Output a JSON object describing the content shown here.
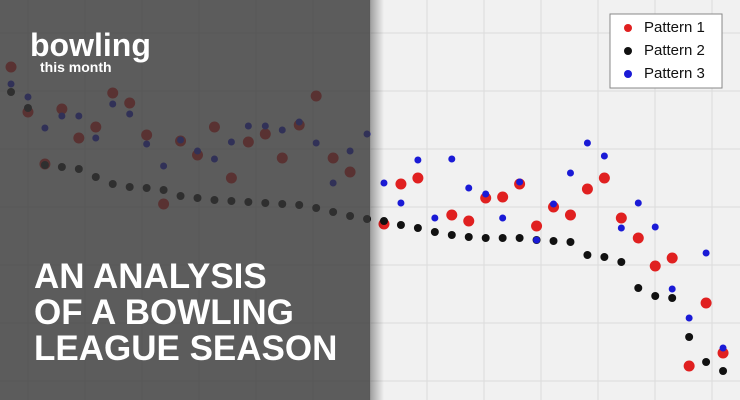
{
  "chart_data": {
    "type": "scatter",
    "x": [
      1,
      2,
      3,
      4,
      5,
      6,
      7,
      8,
      9,
      10,
      11,
      12,
      13,
      14,
      15,
      16,
      17,
      18,
      19,
      20,
      21,
      22,
      23,
      24,
      25,
      26,
      27,
      28,
      29,
      30,
      31,
      32,
      33,
      34,
      35,
      36,
      37,
      38,
      39,
      40,
      41,
      42,
      43
    ],
    "xlim": [
      0.35,
      44
    ],
    "ylim": [
      0,
      400
    ],
    "grid": true,
    "legend": "top-right",
    "series": [
      {
        "name": "Pattern 1",
        "color": "#e02020",
        "values": [
          333,
          288,
          236,
          291,
          262,
          273,
          307,
          297,
          265,
          196,
          259,
          245,
          273,
          222,
          258,
          266,
          242,
          275,
          304,
          242,
          228,
          null,
          176,
          216,
          222,
          null,
          185,
          179,
          202,
          203,
          216,
          174,
          193,
          185,
          211,
          222,
          182,
          162,
          134,
          142,
          34,
          97,
          47
        ]
      },
      {
        "name": "Pattern 2",
        "color": "#111111",
        "values": [
          308,
          292,
          235,
          233,
          231,
          223,
          216,
          213,
          212,
          210,
          204,
          202,
          200,
          199,
          198,
          197,
          196,
          195,
          192,
          188,
          184,
          181,
          179,
          175,
          172,
          168,
          165,
          163,
          162,
          162,
          162,
          160,
          159,
          158,
          145,
          143,
          138,
          112,
          104,
          102,
          63,
          38,
          29
        ]
      },
      {
        "name": "Pattern 3",
        "color": "#1a1ad6",
        "values": [
          316,
          303,
          272,
          284,
          284,
          262,
          296,
          286,
          256,
          234,
          260,
          249,
          241,
          258,
          274,
          274,
          270,
          278,
          257,
          217,
          249,
          266,
          217,
          197,
          240,
          182,
          241,
          212,
          206,
          182,
          218,
          160,
          196,
          227,
          257,
          244,
          172,
          197,
          173,
          111,
          82,
          147,
          52
        ]
      }
    ]
  },
  "logo": {
    "name": "bowling",
    "tagline": "this month"
  },
  "headline": {
    "lines": [
      "AN ANALYSIS",
      "OF A BOWLING",
      "LEAGUE SEASON"
    ]
  }
}
